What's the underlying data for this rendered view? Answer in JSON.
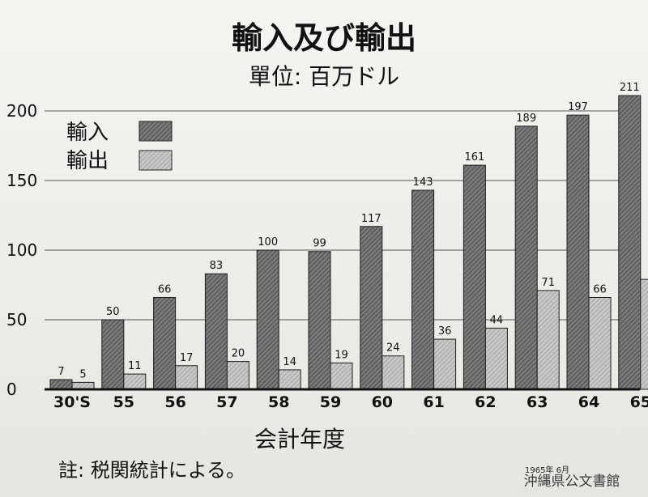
{
  "chart_data": {
    "type": "bar",
    "title": "輸入及び輸出",
    "subtitle": "單位: 百万ドル",
    "xlabel": "会計年度",
    "ylabel": "",
    "ylim": [
      0,
      200
    ],
    "yticks": [
      "0",
      "50",
      "100",
      "150",
      "200"
    ],
    "grid": true,
    "legend_position": "top-left",
    "categories": [
      "30'S",
      "55",
      "56",
      "57",
      "58",
      "59",
      "60",
      "61",
      "62",
      "63",
      "64",
      "65"
    ],
    "series": [
      {
        "name": "輸入",
        "values": [
          7,
          50,
          66,
          83,
          100,
          99,
          117,
          143,
          161,
          189,
          197,
          211
        ]
      },
      {
        "name": "輸出",
        "values": [
          5,
          11,
          17,
          20,
          14,
          19,
          24,
          36,
          44,
          71,
          66,
          79
        ]
      }
    ],
    "note": "註: 税関統計による。",
    "date_stamp": "1965年 6月",
    "watermark": "沖縄県公文書館",
    "colors": {
      "import": "#6e6e6e",
      "export": "#bdbdbd",
      "grid": "#555555",
      "axis": "#111111"
    }
  }
}
